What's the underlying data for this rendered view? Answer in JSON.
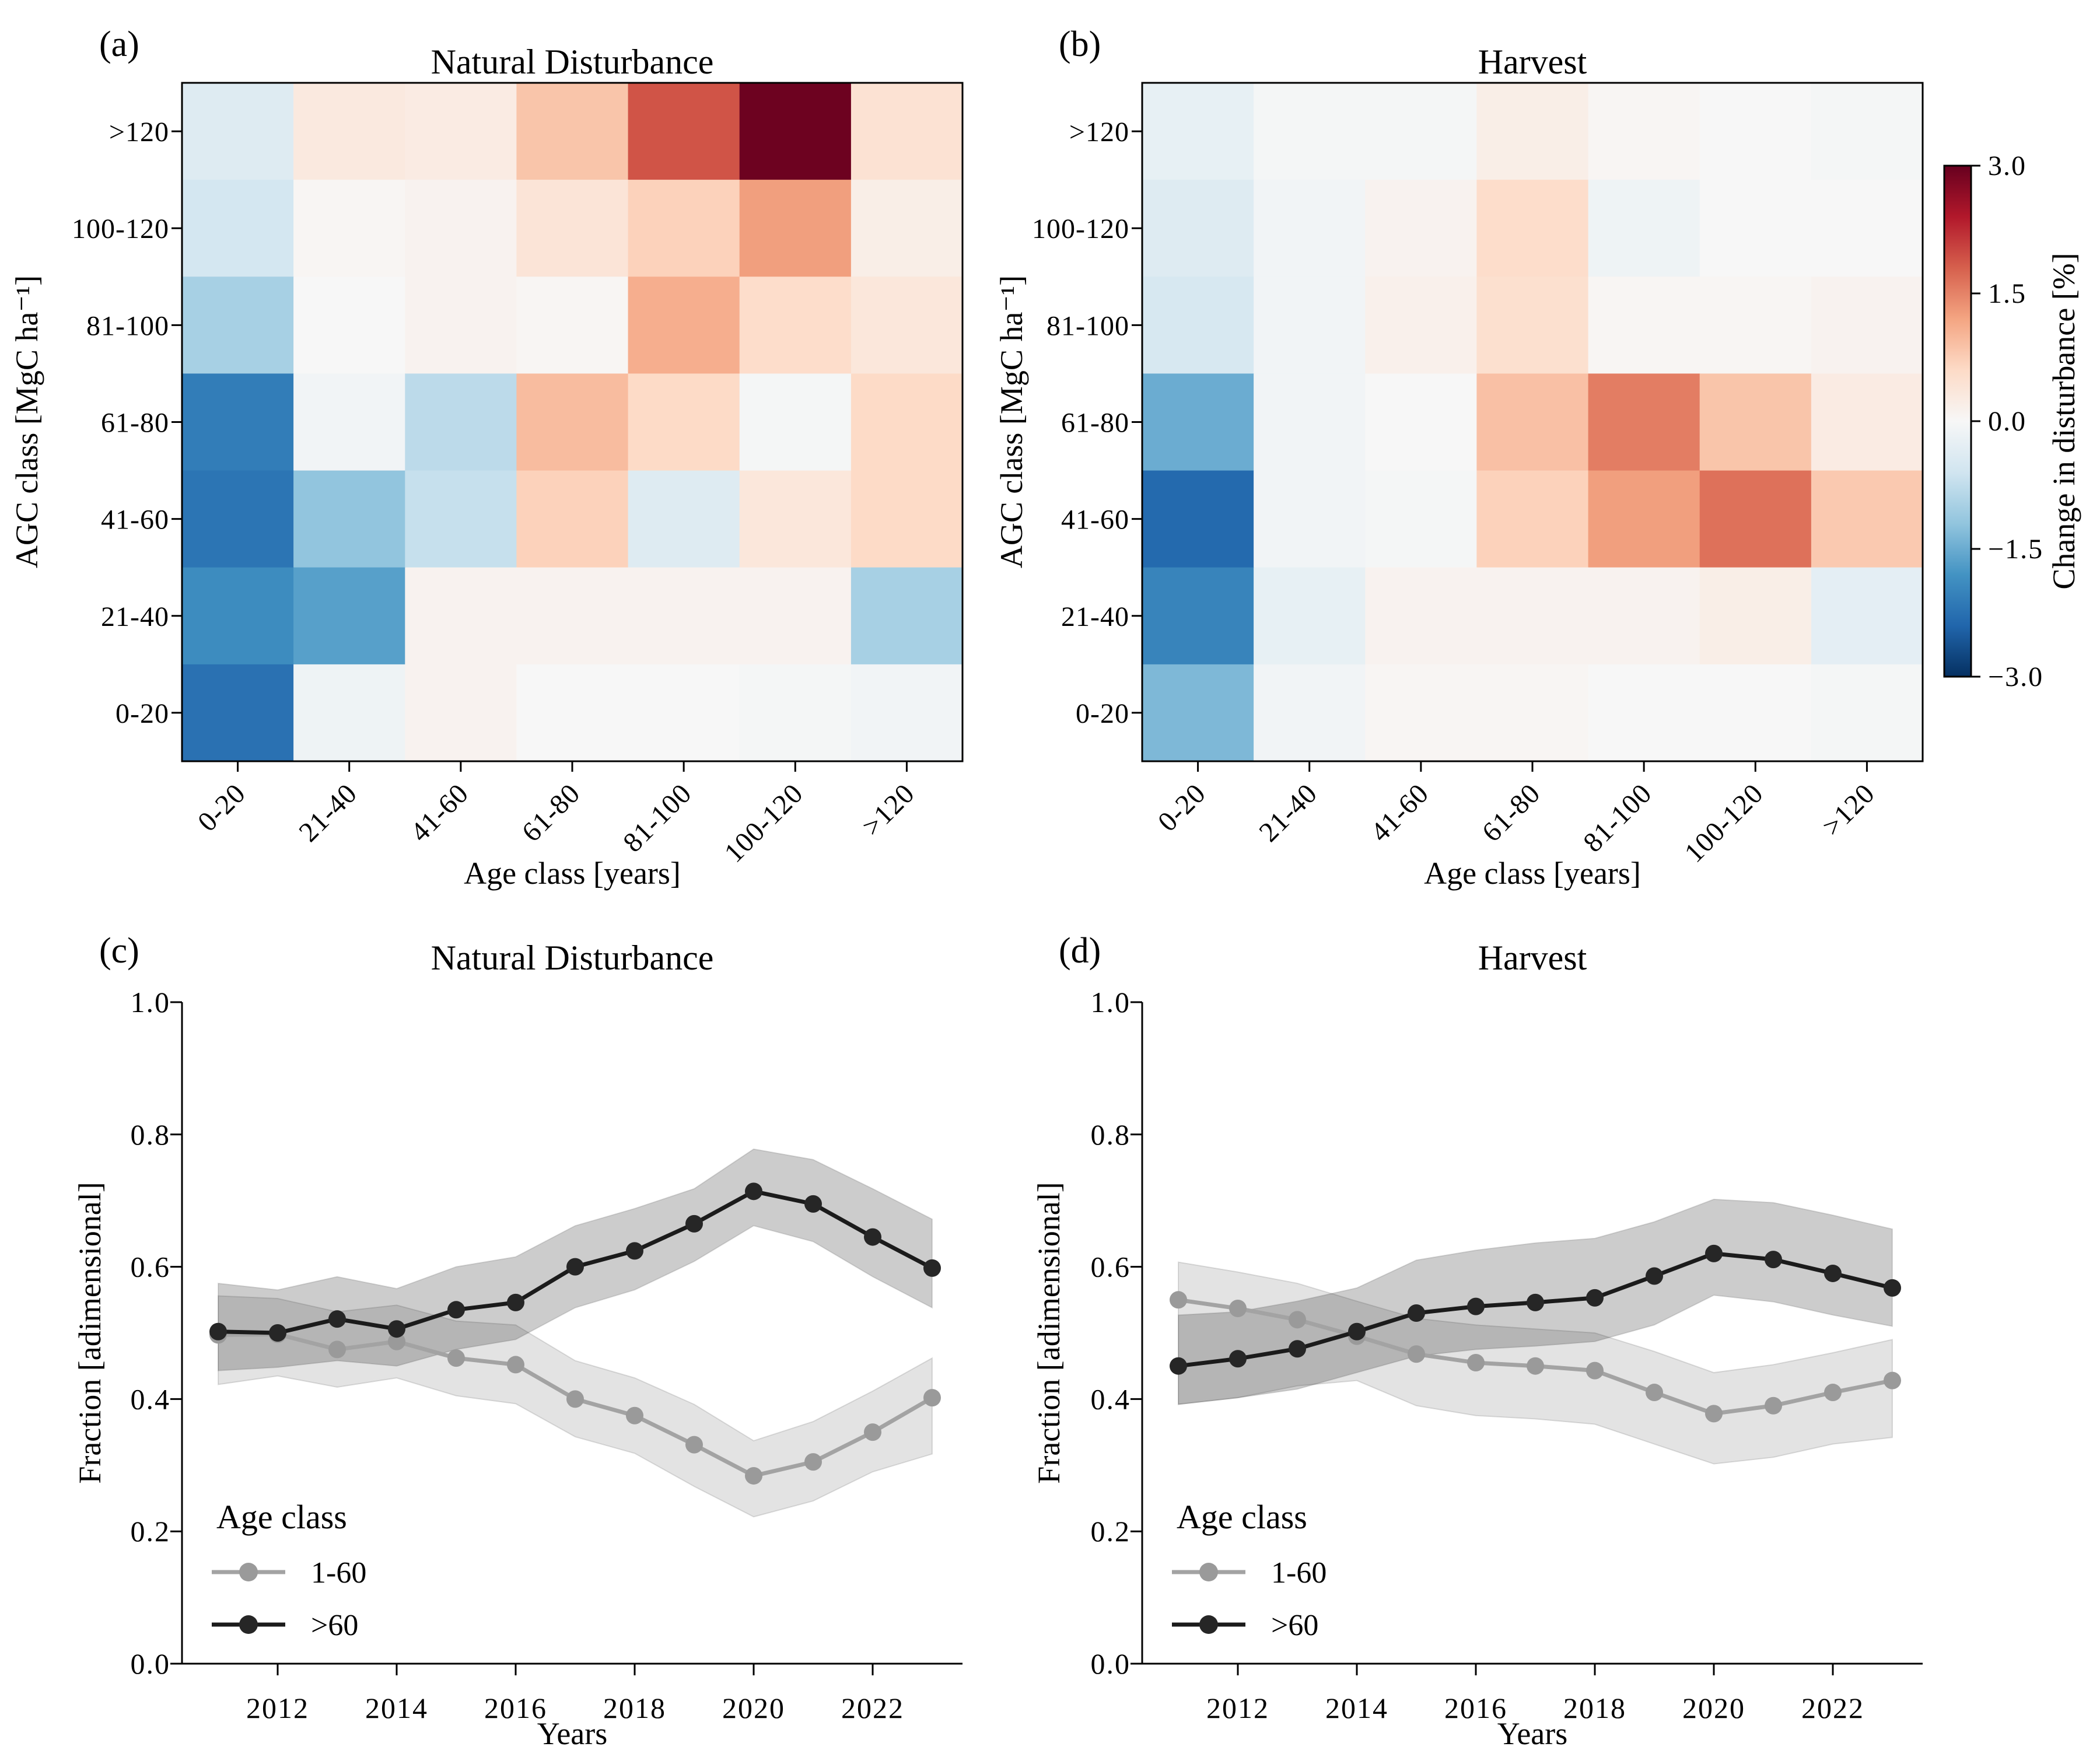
{
  "colorbar": {
    "label": "Change in disturbance [%]",
    "vmin": -3.0,
    "vmax": 3.0,
    "colormap": "RdBu_r",
    "tick_values": [
      3.0,
      1.5,
      0.0,
      -1.5,
      -3.0
    ],
    "tick_labels": [
      "3.0",
      "1.5",
      "0.0",
      "−1.5",
      "−3.0"
    ]
  },
  "chart_data": [
    {
      "type": "heatmap",
      "panel_label": "(a)",
      "title": "Natural Disturbance",
      "xlabel": "Age class [years]",
      "ylabel": "AGC class [MgC ha⁻¹]",
      "x_categories": [
        "0-20",
        "21-40",
        "41-60",
        "61-80",
        "81-100",
        "100-120",
        ">120"
      ],
      "y_categories": [
        ">120",
        "100-120",
        "81-100",
        "61-80",
        "41-60",
        "21-40",
        "0-20"
      ],
      "vmin": -3.0,
      "vmax": 3.0,
      "colormap": "RdBu_r",
      "values": [
        [
          -0.4,
          0.3,
          0.25,
          0.85,
          1.9,
          2.95,
          0.45
        ],
        [
          -0.55,
          0.05,
          0.1,
          0.4,
          0.7,
          1.25,
          0.2
        ],
        [
          -1.0,
          0.0,
          0.1,
          0.05,
          1.1,
          0.55,
          0.35
        ],
        [
          -2.1,
          -0.1,
          -0.8,
          0.95,
          0.6,
          -0.05,
          0.6
        ],
        [
          -2.2,
          -1.2,
          -0.7,
          0.7,
          -0.4,
          0.35,
          0.6
        ],
        [
          -1.9,
          -1.65,
          0.1,
          0.1,
          0.1,
          0.1,
          -1.0
        ],
        [
          -2.25,
          -0.15,
          0.1,
          0.0,
          0.0,
          -0.05,
          -0.1
        ]
      ]
    },
    {
      "type": "heatmap",
      "panel_label": "(b)",
      "title": "Harvest",
      "xlabel": "Age class [years]",
      "ylabel": "AGC class [MgC ha⁻¹]",
      "x_categories": [
        "0-20",
        "21-40",
        "41-60",
        "61-80",
        "81-100",
        "100-120",
        ">120"
      ],
      "y_categories": [
        ">120",
        "100-120",
        "81-100",
        "61-80",
        "41-60",
        "21-40",
        "0-20"
      ],
      "vmin": -3.0,
      "vmax": 3.0,
      "colormap": "RdBu_r",
      "values": [
        [
          -0.25,
          -0.05,
          -0.05,
          0.2,
          0.05,
          0.0,
          -0.05
        ],
        [
          -0.4,
          -0.1,
          0.1,
          0.55,
          -0.15,
          0.0,
          0.0
        ],
        [
          -0.5,
          -0.1,
          0.15,
          0.5,
          0.05,
          0.05,
          0.1
        ],
        [
          -1.5,
          -0.1,
          0.0,
          0.9,
          1.55,
          0.85,
          0.25
        ],
        [
          -2.35,
          -0.1,
          -0.05,
          0.7,
          1.25,
          1.65,
          0.8
        ],
        [
          -2.0,
          -0.25,
          0.1,
          0.1,
          0.1,
          0.2,
          -0.3
        ],
        [
          -1.35,
          -0.1,
          0.05,
          0.05,
          0.0,
          0.0,
          -0.05
        ]
      ]
    },
    {
      "type": "line",
      "panel_label": "(c)",
      "title": "Natural Disturbance",
      "xlabel": "Years",
      "ylabel": "Fraction [adimensional]",
      "legend_title": "Age class",
      "ylim": [
        0.0,
        1.0
      ],
      "yticks": [
        0.0,
        0.2,
        0.4,
        0.6,
        0.8,
        1.0
      ],
      "xticks": [
        2012,
        2014,
        2016,
        2018,
        2020,
        2022
      ],
      "x": [
        2011,
        2012,
        2013,
        2014,
        2015,
        2016,
        2017,
        2018,
        2019,
        2020,
        2021,
        2022,
        2023
      ],
      "series": [
        {
          "name": "1-60",
          "line_color": "#a3a3a3",
          "marker_color": "#9a9a9a",
          "band_color": "rgba(0,0,0,0.11)",
          "values": [
            0.497,
            0.498,
            0.475,
            0.487,
            0.462,
            0.452,
            0.4,
            0.375,
            0.331,
            0.284,
            0.305,
            0.35,
            0.402
          ],
          "band_upper": [
            0.556,
            0.552,
            0.532,
            0.542,
            0.518,
            0.512,
            0.458,
            0.432,
            0.392,
            0.337,
            0.366,
            0.412,
            0.462
          ],
          "band_lower": [
            0.422,
            0.435,
            0.418,
            0.432,
            0.405,
            0.393,
            0.343,
            0.318,
            0.268,
            0.222,
            0.246,
            0.29,
            0.317
          ]
        },
        {
          "name": ">60",
          "line_color": "#1b1b1b",
          "marker_color": "#262626",
          "band_color": "rgba(0,0,0,0.20)",
          "values": [
            0.502,
            0.5,
            0.521,
            0.506,
            0.535,
            0.546,
            0.6,
            0.624,
            0.665,
            0.714,
            0.695,
            0.645,
            0.598
          ],
          "band_upper": [
            0.575,
            0.565,
            0.585,
            0.567,
            0.6,
            0.615,
            0.662,
            0.688,
            0.718,
            0.778,
            0.762,
            0.718,
            0.672
          ],
          "band_lower": [
            0.443,
            0.448,
            0.458,
            0.45,
            0.475,
            0.49,
            0.538,
            0.565,
            0.608,
            0.662,
            0.638,
            0.585,
            0.538
          ]
        }
      ]
    },
    {
      "type": "line",
      "panel_label": "(d)",
      "title": "Harvest",
      "xlabel": "Years",
      "ylabel": "Fraction [adimensional]",
      "legend_title": "Age class",
      "ylim": [
        0.0,
        1.0
      ],
      "yticks": [
        0.0,
        0.2,
        0.4,
        0.6,
        0.8,
        1.0
      ],
      "xticks": [
        2012,
        2014,
        2016,
        2018,
        2020,
        2022
      ],
      "x": [
        2011,
        2012,
        2013,
        2014,
        2015,
        2016,
        2017,
        2018,
        2019,
        2020,
        2021,
        2022,
        2023
      ],
      "series": [
        {
          "name": "1-60",
          "line_color": "#a3a3a3",
          "marker_color": "#9a9a9a",
          "band_color": "rgba(0,0,0,0.11)",
          "values": [
            0.55,
            0.537,
            0.52,
            0.495,
            0.468,
            0.455,
            0.45,
            0.443,
            0.41,
            0.378,
            0.39,
            0.41,
            0.428
          ],
          "band_upper": [
            0.607,
            0.592,
            0.575,
            0.548,
            0.522,
            0.512,
            0.506,
            0.5,
            0.472,
            0.44,
            0.452,
            0.47,
            0.49
          ],
          "band_lower": [
            0.392,
            0.402,
            0.42,
            0.428,
            0.39,
            0.375,
            0.37,
            0.362,
            0.332,
            0.302,
            0.312,
            0.332,
            0.342
          ]
        },
        {
          "name": ">60",
          "line_color": "#1b1b1b",
          "marker_color": "#262626",
          "band_color": "rgba(0,0,0,0.20)",
          "values": [
            0.45,
            0.461,
            0.476,
            0.502,
            0.53,
            0.54,
            0.546,
            0.553,
            0.586,
            0.62,
            0.611,
            0.59,
            0.568
          ],
          "band_upper": [
            0.527,
            0.532,
            0.548,
            0.568,
            0.61,
            0.625,
            0.636,
            0.643,
            0.668,
            0.702,
            0.697,
            0.678,
            0.657
          ],
          "band_lower": [
            0.392,
            0.402,
            0.415,
            0.44,
            0.465,
            0.475,
            0.48,
            0.487,
            0.512,
            0.557,
            0.547,
            0.527,
            0.51
          ]
        }
      ]
    }
  ]
}
